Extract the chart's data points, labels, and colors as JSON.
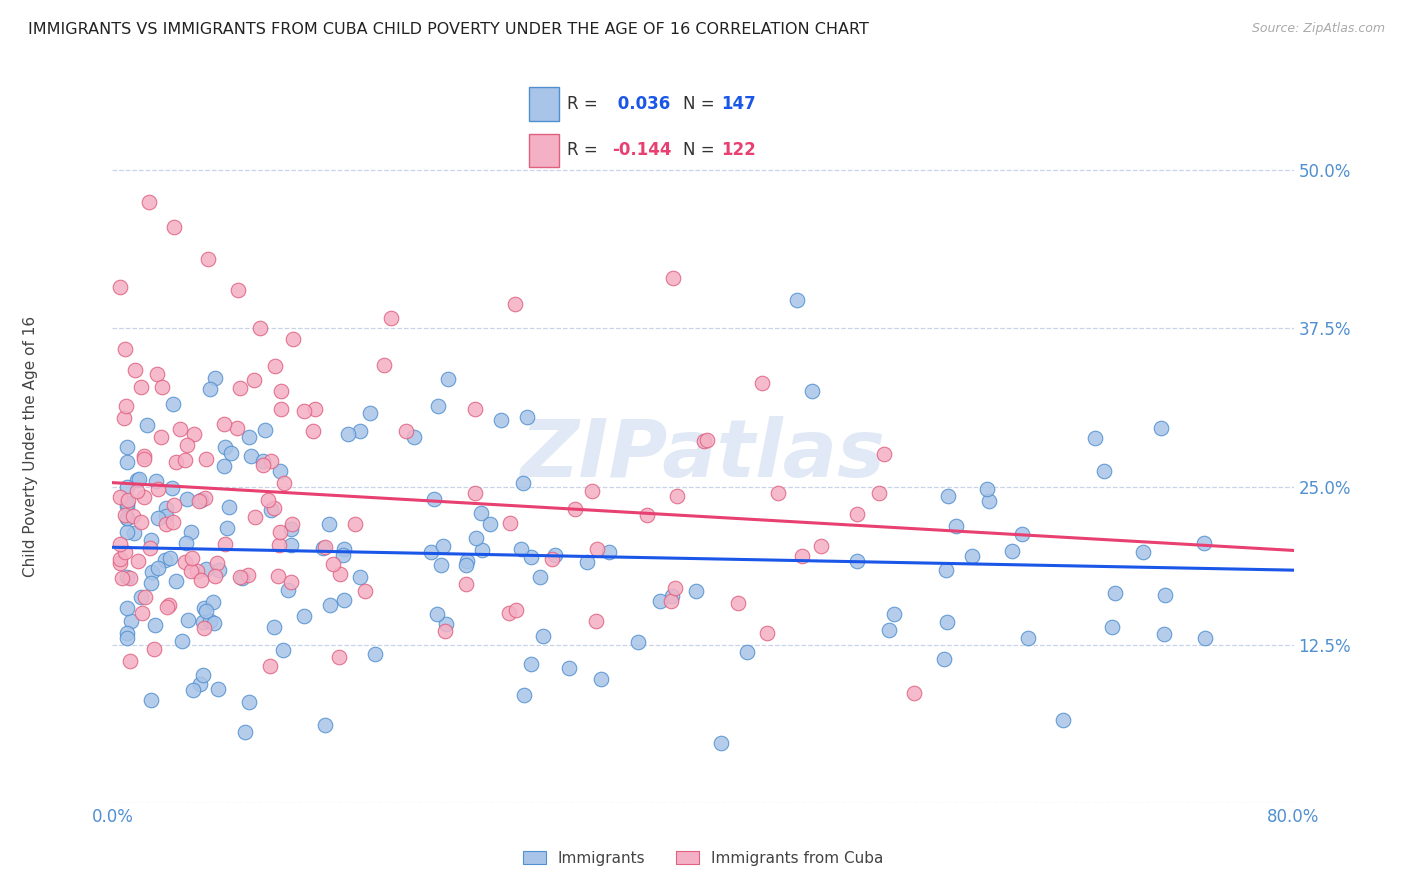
{
  "title": "IMMIGRANTS VS IMMIGRANTS FROM CUBA CHILD POVERTY UNDER THE AGE OF 16 CORRELATION CHART",
  "source": "Source: ZipAtlas.com",
  "ylabel": "Child Poverty Under the Age of 16",
  "xlim": [
    0.0,
    0.8
  ],
  "ylim": [
    0.0,
    0.55
  ],
  "ytick_positions": [
    0.0,
    0.125,
    0.25,
    0.375,
    0.5
  ],
  "ytick_labels": [
    "",
    "12.5%",
    "25.0%",
    "37.5%",
    "50.0%"
  ],
  "xtick_positions": [
    0.0,
    0.16,
    0.32,
    0.48,
    0.64,
    0.8
  ],
  "xtick_labels": [
    "0.0%",
    "",
    "",
    "",
    "",
    "80.0%"
  ],
  "blue_R": 0.036,
  "blue_N": 147,
  "pink_R": -0.144,
  "pink_N": 122,
  "blue_fill": "#a8c4e8",
  "pink_fill": "#f4b0c4",
  "blue_edge": "#5090d0",
  "pink_edge": "#e06080",
  "blue_line": "#1a56e8",
  "pink_line": "#e84070",
  "axis_color": "#5090d0",
  "grid_color": "#c8d4e8",
  "bg_color": "#ffffff",
  "watermark": "ZIPatlas",
  "legend_label_blue": "Immigrants",
  "legend_label_pink": "Immigrants from Cuba",
  "title_fontsize": 11.5,
  "marker_size": 110,
  "seed": 42
}
